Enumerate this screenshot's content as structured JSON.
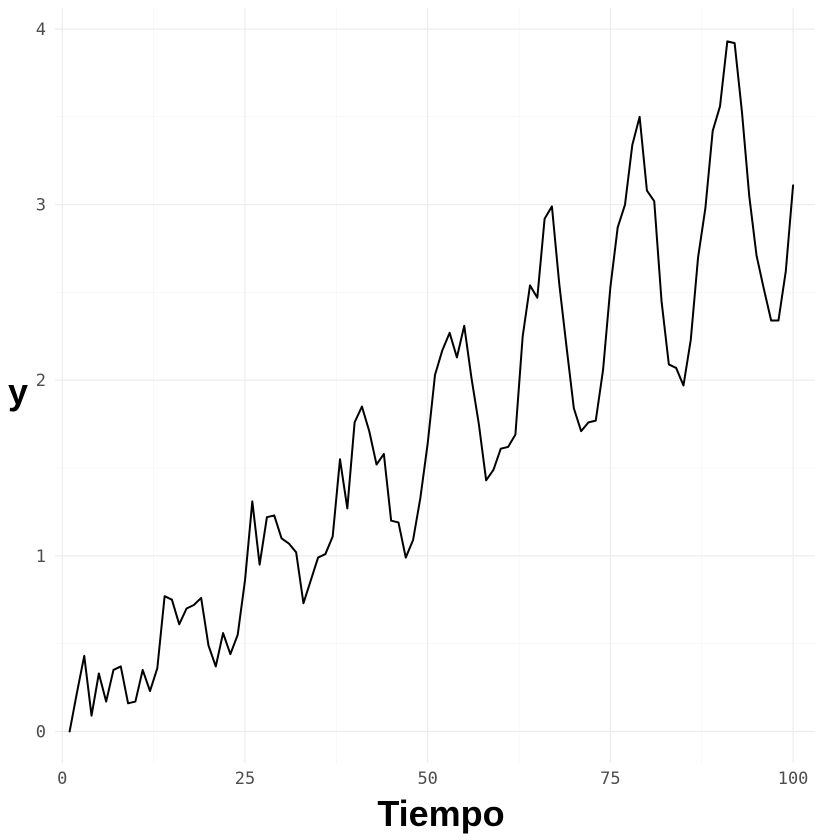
{
  "chart_data": {
    "type": "line",
    "title": "",
    "xlabel": "Tiempo",
    "ylabel": "y",
    "xlim": [
      -1,
      103
    ],
    "ylim": [
      -0.18,
      4.12
    ],
    "x_ticks": [
      0,
      25,
      50,
      75,
      100
    ],
    "x_tick_labels": [
      "0",
      "25",
      "50",
      "75",
      "100"
    ],
    "y_ticks": [
      0,
      1,
      2,
      3,
      4
    ],
    "y_tick_labels": [
      "0",
      "1",
      "2",
      "3",
      "4"
    ],
    "grid": true,
    "line_color": "#000000",
    "series": [
      {
        "x": [
          1,
          2,
          3,
          4,
          5,
          6,
          7,
          8,
          9,
          10,
          11,
          12,
          13,
          14,
          15,
          16,
          17,
          18,
          19,
          20,
          21,
          22,
          23,
          24,
          25,
          26,
          27,
          28,
          29,
          30,
          31,
          32,
          33,
          34,
          35,
          36,
          37,
          38,
          39,
          40,
          41,
          42,
          43,
          44,
          45,
          46,
          47,
          48,
          49,
          50,
          51,
          52,
          53,
          54,
          55,
          56,
          57,
          58,
          59,
          60,
          61,
          62,
          63,
          64,
          65,
          66,
          67,
          68,
          69,
          70,
          71,
          72,
          73,
          74,
          75,
          76,
          77,
          78,
          79,
          80,
          81,
          82,
          83,
          84,
          85,
          86,
          87,
          88,
          89,
          90,
          91,
          92,
          93,
          94,
          95,
          96,
          97,
          98,
          99,
          100
        ],
        "y": [
          0.0,
          0.22,
          0.43,
          0.09,
          0.33,
          0.17,
          0.35,
          0.37,
          0.16,
          0.17,
          0.35,
          0.23,
          0.36,
          0.77,
          0.75,
          0.61,
          0.7,
          0.72,
          0.76,
          0.49,
          0.37,
          0.56,
          0.44,
          0.55,
          0.86,
          1.31,
          0.95,
          1.22,
          1.23,
          1.1,
          1.07,
          1.02,
          0.73,
          0.86,
          0.99,
          1.01,
          1.11,
          1.55,
          1.27,
          1.76,
          1.85,
          1.71,
          1.52,
          1.58,
          1.2,
          1.19,
          0.99,
          1.09,
          1.33,
          1.64,
          2.03,
          2.17,
          2.27,
          2.13,
          2.31,
          2.01,
          1.75,
          1.43,
          1.49,
          1.61,
          1.62,
          1.69,
          2.25,
          2.54,
          2.47,
          2.92,
          2.99,
          2.55,
          2.19,
          1.84,
          1.71,
          1.76,
          1.77,
          2.06,
          2.53,
          2.87,
          3.0,
          3.34,
          3.5,
          3.08,
          3.02,
          2.45,
          2.09,
          2.07,
          1.97,
          2.23,
          2.7,
          2.98,
          3.42,
          3.56,
          3.93,
          3.92,
          3.53,
          3.05,
          2.71,
          2.52,
          2.34,
          2.34,
          2.62,
          3.11
        ]
      }
    ]
  }
}
